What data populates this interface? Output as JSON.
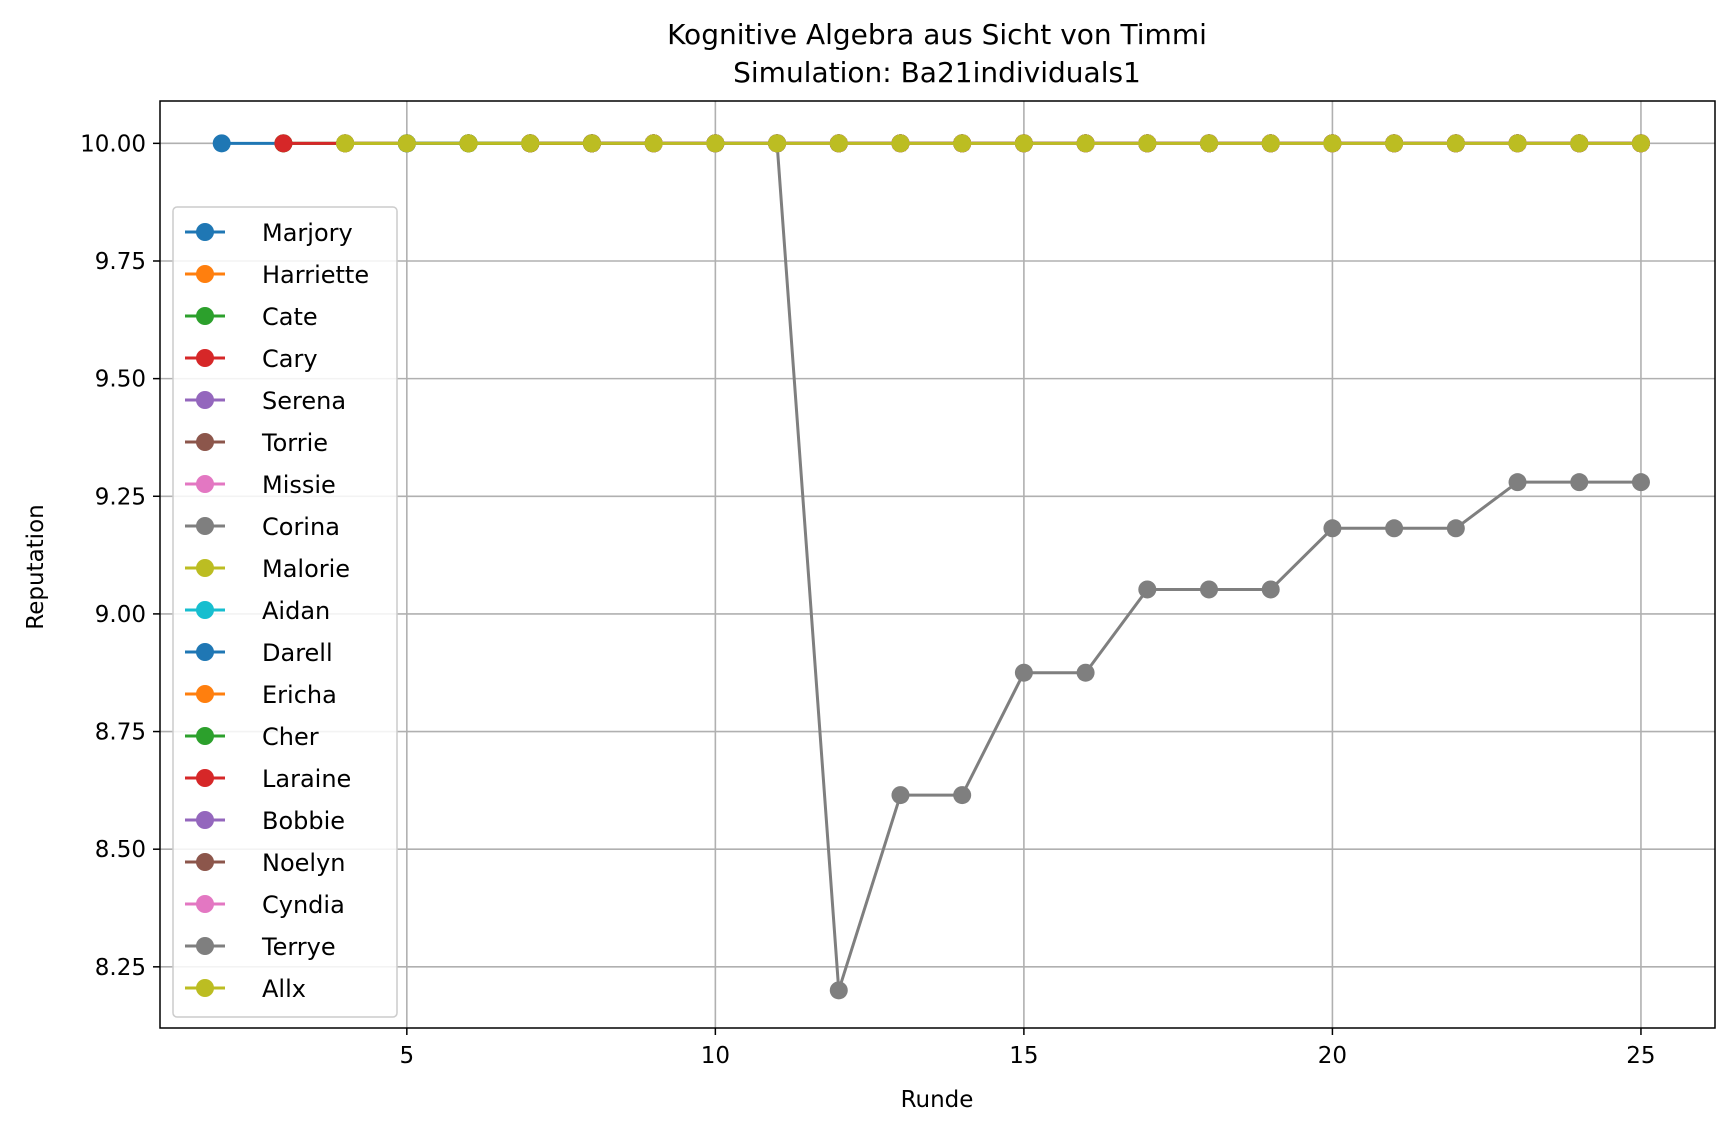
{
  "chart_data": {
    "type": "line",
    "title": "Kognitive Algebra aus Sicht von Timmi",
    "subtitle": "Simulation: Ba21individuals1",
    "xlabel": "Runde",
    "ylabel": "Reputation",
    "xlim": [
      1.0,
      26.2
    ],
    "ylim": [
      8.12,
      10.09
    ],
    "xticks": [
      5,
      10,
      15,
      20,
      25
    ],
    "xtick_labels": [
      "5",
      "10",
      "15",
      "20",
      "25"
    ],
    "yticks": [
      8.25,
      8.5,
      8.75,
      9.0,
      9.25,
      9.5,
      9.75,
      10.0
    ],
    "ytick_labels": [
      "8.25",
      "8.50",
      "8.75",
      "9.00",
      "9.25",
      "9.50",
      "9.75",
      "10.00"
    ],
    "grid": true,
    "legend_position": "left",
    "series": [
      {
        "name": "Marjory",
        "color": "#1f77b4",
        "x": [
          2,
          3,
          4,
          5,
          6,
          7,
          8,
          9,
          10,
          11,
          12,
          13,
          14,
          15,
          16,
          17,
          18,
          19,
          20,
          21,
          22,
          23,
          24,
          25
        ],
        "y": [
          10,
          10,
          10,
          10,
          10,
          10,
          10,
          10,
          10,
          10,
          10,
          10,
          10,
          10,
          10,
          10,
          10,
          10,
          10,
          10,
          10,
          10,
          10,
          10
        ]
      },
      {
        "name": "Harriette",
        "color": "#ff7f0e",
        "x": [
          3,
          4,
          5,
          6,
          7,
          8,
          9,
          10,
          11,
          12,
          13,
          14,
          15,
          16,
          17,
          18,
          19,
          20,
          21,
          22,
          23,
          24,
          25
        ],
        "y": [
          10,
          10,
          10,
          10,
          10,
          10,
          10,
          10,
          10,
          10,
          10,
          10,
          10,
          10,
          10,
          10,
          10,
          10,
          10,
          10,
          10,
          10,
          10
        ]
      },
      {
        "name": "Cate",
        "color": "#2ca02c",
        "x": [
          3,
          4,
          5,
          6,
          7,
          8,
          9,
          10,
          11,
          12,
          13,
          14,
          15,
          16,
          17,
          18,
          19,
          20,
          21,
          22,
          23,
          24,
          25
        ],
        "y": [
          10,
          10,
          10,
          10,
          10,
          10,
          10,
          10,
          10,
          10,
          10,
          10,
          10,
          10,
          10,
          10,
          10,
          10,
          10,
          10,
          10,
          10,
          10
        ]
      },
      {
        "name": "Cary",
        "color": "#d62728",
        "x": [
          3,
          4,
          5,
          6,
          7,
          8,
          9,
          10,
          11,
          12,
          13,
          14,
          15,
          16,
          17,
          18,
          19,
          20,
          21,
          22,
          23,
          24,
          25
        ],
        "y": [
          10,
          10,
          10,
          10,
          10,
          10,
          10,
          10,
          10,
          10,
          10,
          10,
          10,
          10,
          10,
          10,
          10,
          10,
          10,
          10,
          10,
          10,
          10
        ]
      },
      {
        "name": "Serena",
        "color": "#9467bd",
        "x": [
          4,
          5,
          6,
          7,
          8,
          9,
          10,
          11,
          12,
          13,
          14,
          15,
          16,
          17,
          18,
          19,
          20,
          21,
          22,
          23,
          24,
          25
        ],
        "y": [
          10,
          10,
          10,
          10,
          10,
          10,
          10,
          10,
          10,
          10,
          10,
          10,
          10,
          10,
          10,
          10,
          10,
          10,
          10,
          10,
          10,
          10
        ]
      },
      {
        "name": "Torrie",
        "color": "#8c564b",
        "x": [
          4,
          5,
          6,
          7,
          8,
          9,
          10,
          11,
          12,
          13,
          14,
          15,
          16,
          17,
          18,
          19,
          20,
          21,
          22,
          23,
          24,
          25
        ],
        "y": [
          10,
          10,
          10,
          10,
          10,
          10,
          10,
          10,
          10,
          10,
          10,
          10,
          10,
          10,
          10,
          10,
          10,
          10,
          10,
          10,
          10,
          10
        ]
      },
      {
        "name": "Missie",
        "color": "#e377c2",
        "x": [
          4,
          5,
          6,
          7,
          8,
          9,
          10,
          11,
          12,
          13,
          14,
          15,
          16,
          17,
          18,
          19,
          20,
          21,
          22,
          23,
          24,
          25
        ],
        "y": [
          10,
          10,
          10,
          10,
          10,
          10,
          10,
          10,
          10,
          10,
          10,
          10,
          10,
          10,
          10,
          10,
          10,
          10,
          10,
          10,
          10,
          10
        ]
      },
      {
        "name": "Corina",
        "color": "#7f7f7f",
        "x": [
          4,
          5,
          6,
          7,
          8,
          9,
          10,
          11,
          12,
          13,
          14,
          15,
          16,
          17,
          18,
          19,
          20,
          21,
          22,
          23,
          24,
          25
        ],
        "y": [
          10,
          10,
          10,
          10,
          10,
          10,
          10,
          10,
          10,
          10,
          10,
          10,
          10,
          10,
          10,
          10,
          10,
          10,
          10,
          10,
          10,
          10
        ]
      },
      {
        "name": "Malorie",
        "color": "#bcbd22",
        "x": [
          4,
          5,
          6,
          7,
          8,
          9,
          10,
          11,
          12,
          13,
          14,
          15,
          16,
          17,
          18,
          19,
          20,
          21,
          22,
          23,
          24,
          25
        ],
        "y": [
          10,
          10,
          10,
          10,
          10,
          10,
          10,
          10,
          10,
          10,
          10,
          10,
          10,
          10,
          10,
          10,
          10,
          10,
          10,
          10,
          10,
          10
        ]
      },
      {
        "name": "Aidan",
        "color": "#17becf",
        "x": [
          5,
          6,
          7,
          8,
          9,
          10,
          11,
          12,
          13,
          14,
          15,
          16,
          17,
          18,
          19,
          20,
          21,
          22,
          23,
          24,
          25
        ],
        "y": [
          10,
          10,
          10,
          10,
          10,
          10,
          10,
          10,
          10,
          10,
          10,
          10,
          10,
          10,
          10,
          10,
          10,
          10,
          10,
          10,
          10
        ]
      },
      {
        "name": "Darell",
        "color": "#1f77b4",
        "x": [
          5,
          6,
          7,
          8,
          9,
          10,
          11,
          12,
          13,
          14,
          15,
          16,
          17,
          18,
          19,
          20,
          21,
          22,
          23,
          24,
          25
        ],
        "y": [
          10,
          10,
          10,
          10,
          10,
          10,
          10,
          10,
          10,
          10,
          10,
          10,
          10,
          10,
          10,
          10,
          10,
          10,
          10,
          10,
          10
        ]
      },
      {
        "name": "Ericha",
        "color": "#ff7f0e",
        "x": [
          6,
          7,
          8,
          9,
          10,
          11,
          12,
          13,
          14,
          15,
          16,
          17,
          18,
          19,
          20,
          21,
          22,
          23,
          24,
          25
        ],
        "y": [
          10,
          10,
          10,
          10,
          10,
          10,
          10,
          10,
          10,
          10,
          10,
          10,
          10,
          10,
          10,
          10,
          10,
          10,
          10,
          10
        ]
      },
      {
        "name": "Cher",
        "color": "#2ca02c",
        "x": [
          6,
          7,
          8,
          9,
          10,
          11,
          12,
          13,
          14,
          15,
          16,
          17,
          18,
          19,
          20,
          21,
          22,
          23,
          24,
          25
        ],
        "y": [
          10,
          10,
          10,
          10,
          10,
          10,
          10,
          10,
          10,
          10,
          10,
          10,
          10,
          10,
          10,
          10,
          10,
          10,
          10,
          10
        ]
      },
      {
        "name": "Laraine",
        "color": "#d62728",
        "x": [
          7,
          8,
          9,
          10,
          11,
          12,
          13,
          14,
          15,
          16,
          17,
          18,
          19,
          20,
          21,
          22,
          23,
          24,
          25
        ],
        "y": [
          10,
          10,
          10,
          10,
          10,
          10,
          10,
          10,
          10,
          10,
          10,
          10,
          10,
          10,
          10,
          10,
          10,
          10,
          10
        ]
      },
      {
        "name": "Bobbie",
        "color": "#9467bd",
        "x": [
          8,
          9,
          10,
          11,
          12,
          13,
          14,
          15,
          16,
          17,
          18,
          19,
          20,
          21,
          22,
          23,
          24,
          25
        ],
        "y": [
          10,
          10,
          10,
          10,
          10,
          10,
          10,
          10,
          10,
          10,
          10,
          10,
          10,
          10,
          10,
          10,
          10,
          10
        ]
      },
      {
        "name": "Noelyn",
        "color": "#8c564b",
        "x": [
          8,
          9,
          10,
          11,
          12,
          13,
          14,
          15,
          16,
          17,
          18,
          19,
          20,
          21,
          22,
          23,
          24,
          25
        ],
        "y": [
          10,
          10,
          10,
          10,
          10,
          10,
          10,
          10,
          10,
          10,
          10,
          10,
          10,
          10,
          10,
          10,
          10,
          10
        ]
      },
      {
        "name": "Cyndia",
        "color": "#e377c2",
        "x": [
          9,
          10,
          11,
          12,
          13,
          14,
          15,
          16,
          17,
          18,
          19,
          20,
          21,
          22,
          23,
          24,
          25
        ],
        "y": [
          10,
          10,
          10,
          10,
          10,
          10,
          10,
          10,
          10,
          10,
          10,
          10,
          10,
          10,
          10,
          10,
          10
        ]
      },
      {
        "name": "Terrye",
        "color": "#7f7f7f",
        "x": [
          10,
          11,
          12,
          13,
          14,
          15,
          16,
          17,
          18,
          19,
          20,
          21,
          22,
          23,
          24,
          25
        ],
        "y": [
          10,
          10,
          8.2,
          8.615,
          8.615,
          8.875,
          8.875,
          9.052,
          9.052,
          9.052,
          9.182,
          9.182,
          9.182,
          9.28,
          9.28,
          9.28
        ]
      },
      {
        "name": "Allx",
        "color": "#bcbd22",
        "x": [
          4,
          5,
          6,
          7,
          8,
          9,
          10,
          11,
          12,
          13,
          14,
          15,
          16,
          17,
          18,
          19,
          20,
          21,
          22,
          23,
          24,
          25
        ],
        "y": [
          10,
          10,
          10,
          10,
          10,
          10,
          10,
          10,
          10,
          10,
          10,
          10,
          10,
          10,
          10,
          10,
          10,
          10,
          10,
          10,
          10,
          10
        ]
      }
    ]
  }
}
